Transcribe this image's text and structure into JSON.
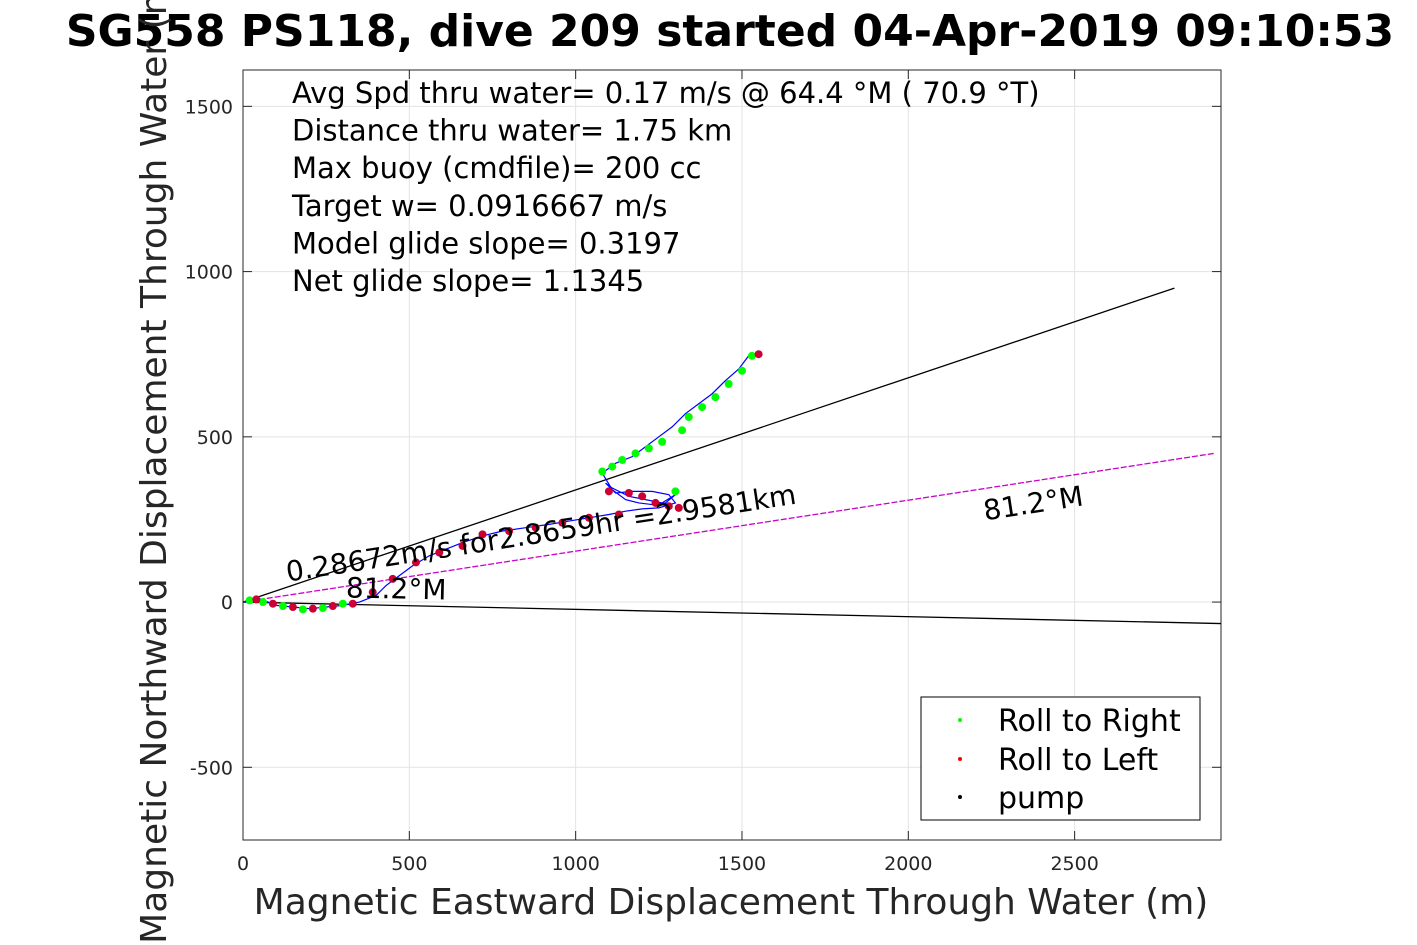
{
  "chart_data": {
    "type": "line",
    "title": "SG558 PS118, dive 209 started 04-Apr-2019 09:10:53",
    "xlabel": "Magnetic Eastward Displacement Through Water (m)",
    "ylabel": "Magnetic Northward Displacement Through Water (m)",
    "xlim": [
      0,
      2940
    ],
    "ylim": [
      -720,
      1610
    ],
    "xticks": [
      0,
      500,
      1000,
      1500,
      2000,
      2500
    ],
    "yticks": [
      -500,
      0,
      500,
      1000,
      1500
    ],
    "xtick_labels": [
      "0",
      "500",
      "1000",
      "1500",
      "2000",
      "2500"
    ],
    "ytick_labels": [
      "-500",
      "0",
      "500",
      "1000",
      "1500"
    ],
    "grid": true,
    "legend_position": "bottom-right",
    "stats": [
      "Avg Spd thru water=  0.17 m/s @  64.4 °M ( 70.9 °T)",
      "Distance thru water=  1.75 km",
      "Max buoy (cmdfile)= 200 cc",
      "Target w= 0.0916667 m/s",
      "Model glide slope= 0.3197",
      "Net glide slope= 1.1345"
    ],
    "annotations": {
      "current": "0.28672m/s for2.8659hr =2.9581km",
      "heading_near": "81.2°M",
      "heading_far": "81.2°M"
    },
    "reference_lines": [
      {
        "name": "upper bound",
        "color": "#000000",
        "x": [
          0,
          2800
        ],
        "y": [
          0,
          950
        ]
      },
      {
        "name": "lower bound",
        "color": "#000000",
        "x": [
          0,
          2940
        ],
        "y": [
          0,
          -65
        ]
      },
      {
        "name": "heading",
        "color": "#cc00cc",
        "x": [
          0,
          2920
        ],
        "y": [
          0,
          450
        ]
      }
    ],
    "track": {
      "name": "dive track",
      "color": "#0000ff",
      "x": [
        0,
        50,
        100,
        150,
        200,
        250,
        300,
        350,
        400,
        430,
        470,
        510,
        560,
        610,
        660,
        720,
        780,
        850,
        920,
        980,
        1040,
        1100,
        1150,
        1200,
        1250,
        1300,
        1280,
        1230,
        1170,
        1120,
        1090,
        1110,
        1160,
        1210,
        1260,
        1300,
        1270,
        1230,
        1190,
        1150,
        1110,
        1080,
        1120,
        1170,
        1210,
        1250,
        1290,
        1330,
        1370,
        1410,
        1450,
        1490,
        1520,
        1560
      ],
      "y": [
        0,
        10,
        -10,
        -15,
        -20,
        -15,
        -10,
        0,
        20,
        50,
        80,
        110,
        140,
        160,
        180,
        200,
        215,
        225,
        235,
        245,
        255,
        265,
        275,
        282,
        285,
        300,
        325,
        335,
        335,
        330,
        360,
        345,
        320,
        310,
        300,
        325,
        300,
        295,
        300,
        310,
        340,
        390,
        420,
        440,
        470,
        500,
        530,
        570,
        600,
        630,
        670,
        705,
        745,
        750
      ]
    },
    "series": [
      {
        "name": "Roll to Right",
        "color": "#00ff00",
        "marker": "dot"
      },
      {
        "name": "Roll to Left",
        "color": "#ff0000",
        "marker": "dot"
      },
      {
        "name": "pump",
        "color": "#000000",
        "marker": "dot"
      }
    ],
    "roll_right_points": {
      "x": [
        20,
        60,
        120,
        180,
        240,
        300,
        1080,
        1110,
        1140,
        1180,
        1220,
        1260,
        1300,
        1320,
        1340,
        1380,
        1420,
        1460,
        1500,
        1530
      ],
      "y": [
        5,
        0,
        -12,
        -22,
        -18,
        -5,
        395,
        410,
        430,
        450,
        465,
        485,
        335,
        520,
        560,
        590,
        620,
        660,
        700,
        745
      ]
    },
    "roll_left_points": {
      "x": [
        40,
        90,
        150,
        210,
        270,
        330,
        390,
        450,
        520,
        590,
        660,
        720,
        800,
        880,
        960,
        1040,
        1100,
        1130,
        1160,
        1200,
        1240,
        1280,
        1310,
        1550
      ],
      "y": [
        8,
        -5,
        -15,
        -20,
        -12,
        -5,
        30,
        70,
        120,
        150,
        170,
        205,
        215,
        225,
        240,
        255,
        335,
        265,
        330,
        320,
        300,
        290,
        285,
        750
      ]
    }
  }
}
